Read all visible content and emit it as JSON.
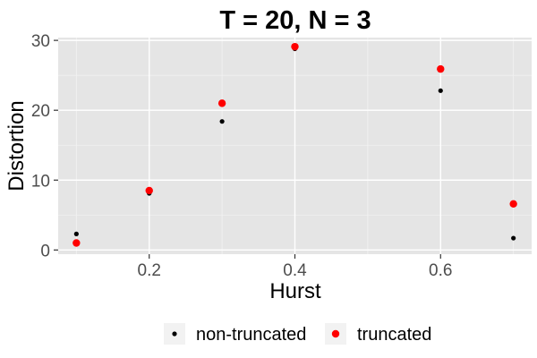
{
  "chart_data": {
    "type": "scatter",
    "title": "T = 20, N = 3",
    "xlabel": "Hurst",
    "ylabel": "Distortion",
    "xlim": [
      0.075,
      0.725
    ],
    "ylim": [
      -0.6,
      30.4
    ],
    "x_ticks": [
      0.2,
      0.4,
      0.6
    ],
    "x_tick_labels": [
      "0.2",
      "0.4",
      "0.6"
    ],
    "y_ticks": [
      0,
      10,
      20,
      30
    ],
    "y_tick_labels": [
      "0",
      "10",
      "20",
      "30"
    ],
    "grid": true,
    "legend_position": "bottom",
    "series": [
      {
        "name": "non-truncated",
        "color": "#000000",
        "x": [
          0.1,
          0.2,
          0.3,
          0.4,
          0.6,
          0.7
        ],
        "y": [
          2.3,
          8.1,
          18.4,
          28.8,
          22.8,
          1.7
        ]
      },
      {
        "name": "truncated",
        "color": "#ff0000",
        "x": [
          0.1,
          0.2,
          0.3,
          0.4,
          0.6,
          0.7
        ],
        "y": [
          1.0,
          8.5,
          21.0,
          29.1,
          25.9,
          6.6
        ]
      }
    ]
  }
}
